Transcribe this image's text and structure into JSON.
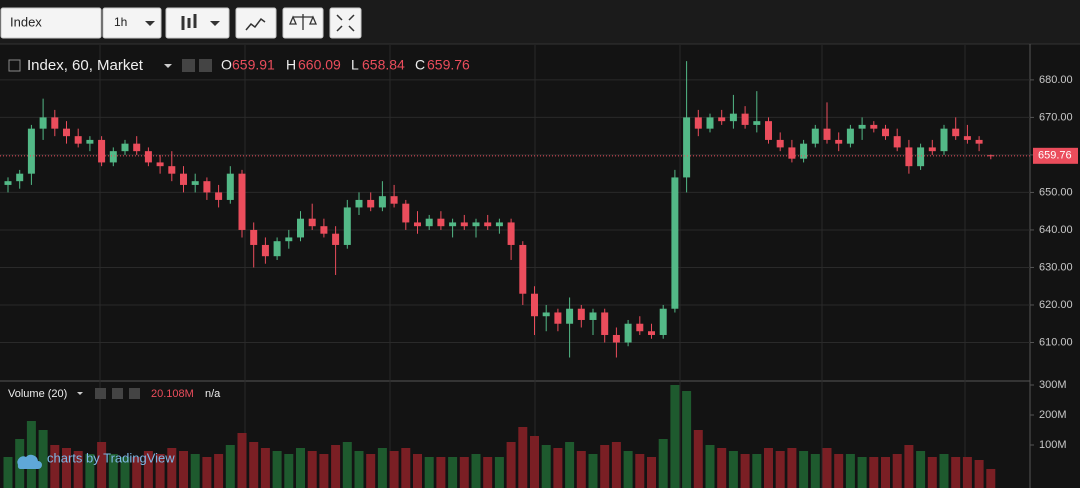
{
  "toolbar": {
    "symbol": "Index",
    "interval": "1h"
  },
  "chart_data": {
    "type": "candlestick",
    "title": "Index, 60, Market",
    "legend": {
      "o": "O",
      "h": "H",
      "l": "L",
      "c": "C"
    },
    "up_color": "#53b987",
    "down_color": "#eb4d5c",
    "ylim": [
      600,
      689.3
    ],
    "yticks": [
      {
        "value": 610,
        "label": "610.00"
      },
      {
        "value": 620,
        "label": "620.00"
      },
      {
        "value": 630,
        "label": "630.00"
      },
      {
        "value": 640,
        "label": "640.00"
      },
      {
        "value": 650,
        "label": "650.00"
      },
      {
        "value": 660,
        "label": "660.00"
      },
      {
        "value": 670,
        "label": "670.00"
      },
      {
        "value": 680,
        "label": "680.00"
      }
    ],
    "grid": true,
    "open": [
      652,
      653,
      655,
      667,
      670,
      667,
      665,
      663,
      664,
      658,
      661,
      663,
      661,
      658,
      657,
      655,
      652,
      653,
      650,
      648,
      655,
      640,
      636,
      633,
      637,
      638,
      643,
      641,
      639,
      636,
      646,
      648,
      646,
      649,
      647,
      642,
      641,
      643,
      641,
      642,
      641,
      642,
      641,
      642,
      636,
      623,
      617,
      618,
      615,
      619,
      616,
      618,
      612,
      610,
      615,
      613,
      612,
      619,
      654,
      670,
      667,
      670,
      669,
      671,
      668,
      669,
      664,
      662,
      659,
      663,
      667,
      664,
      663,
      667,
      668,
      667,
      665,
      662,
      657,
      662,
      661,
      667,
      665,
      664,
      659.91
    ],
    "high": [
      654,
      656,
      668,
      675,
      672,
      669,
      667,
      665,
      665,
      662,
      664,
      665,
      662,
      660,
      661,
      657,
      655,
      654,
      652,
      657,
      656,
      642,
      638,
      638,
      640,
      645,
      647,
      643,
      641,
      648,
      650,
      650,
      653,
      652,
      648,
      645,
      644,
      645,
      643,
      644,
      643,
      644,
      643,
      643,
      637,
      625,
      620,
      619,
      622,
      620,
      619,
      619,
      614,
      616,
      617,
      615,
      620,
      656,
      685,
      672,
      671,
      672,
      676,
      673,
      677,
      670,
      666,
      664,
      664,
      668,
      674,
      666,
      668,
      670,
      669,
      668,
      667,
      664,
      663,
      664,
      668,
      670,
      668,
      665,
      660.09
    ],
    "low": [
      650,
      651,
      652,
      664,
      665,
      663,
      662,
      661,
      657,
      657,
      660,
      660,
      657,
      655,
      653,
      650,
      650,
      648,
      646,
      647,
      638,
      630,
      631,
      632,
      635,
      637,
      640,
      638,
      628,
      635,
      644,
      645,
      645,
      646,
      640,
      639,
      640,
      640,
      638,
      640,
      638,
      640,
      639,
      632,
      620,
      612,
      613,
      613,
      606,
      614,
      612,
      610,
      606,
      609,
      612,
      611,
      611,
      618,
      650,
      665,
      666,
      668,
      667,
      667,
      666,
      663,
      661,
      658,
      658,
      662,
      663,
      661,
      662,
      664,
      666,
      664,
      661,
      655,
      656,
      660,
      660,
      664,
      663,
      661,
      658.84
    ],
    "close": [
      653,
      655,
      667,
      670,
      667,
      665,
      663,
      664,
      658,
      661,
      663,
      661,
      658,
      657,
      655,
      652,
      653,
      650,
      648,
      655,
      640,
      636,
      633,
      637,
      638,
      643,
      641,
      639,
      636,
      646,
      648,
      646,
      649,
      647,
      642,
      641,
      643,
      641,
      642,
      641,
      642,
      641,
      642,
      636,
      623,
      617,
      618,
      615,
      619,
      616,
      618,
      612,
      610,
      615,
      613,
      612,
      619,
      654,
      670,
      667,
      670,
      669,
      671,
      668,
      669,
      664,
      662,
      659,
      663,
      667,
      664,
      663,
      667,
      668,
      667,
      665,
      662,
      657,
      662,
      661,
      667,
      665,
      664,
      663,
      659.76
    ],
    "volume": {
      "title": "Volume (20)",
      "value_label": "20.108M",
      "ma_label": "n/a",
      "ylim": [
        0,
        306.7
      ],
      "yticks": [
        {
          "value": 100,
          "label": "100M"
        },
        {
          "value": 200,
          "label": "200M"
        },
        {
          "value": 300,
          "label": "300M"
        }
      ],
      "values": [
        60,
        120,
        180,
        150,
        100,
        90,
        80,
        70,
        110,
        70,
        60,
        60,
        80,
        70,
        90,
        80,
        70,
        60,
        70,
        100,
        140,
        110,
        90,
        80,
        70,
        90,
        80,
        70,
        100,
        110,
        80,
        70,
        90,
        80,
        90,
        70,
        60,
        60,
        60,
        60,
        70,
        60,
        60,
        110,
        160,
        130,
        100,
        90,
        110,
        80,
        70,
        100,
        110,
        80,
        70,
        60,
        120,
        300,
        280,
        150,
        100,
        90,
        80,
        70,
        70,
        90,
        80,
        90,
        80,
        70,
        90,
        70,
        70,
        60,
        60,
        60,
        70,
        100,
        80,
        60,
        70,
        60,
        60,
        50,
        20.108
      ]
    },
    "attribution": "charts by TradingView"
  }
}
